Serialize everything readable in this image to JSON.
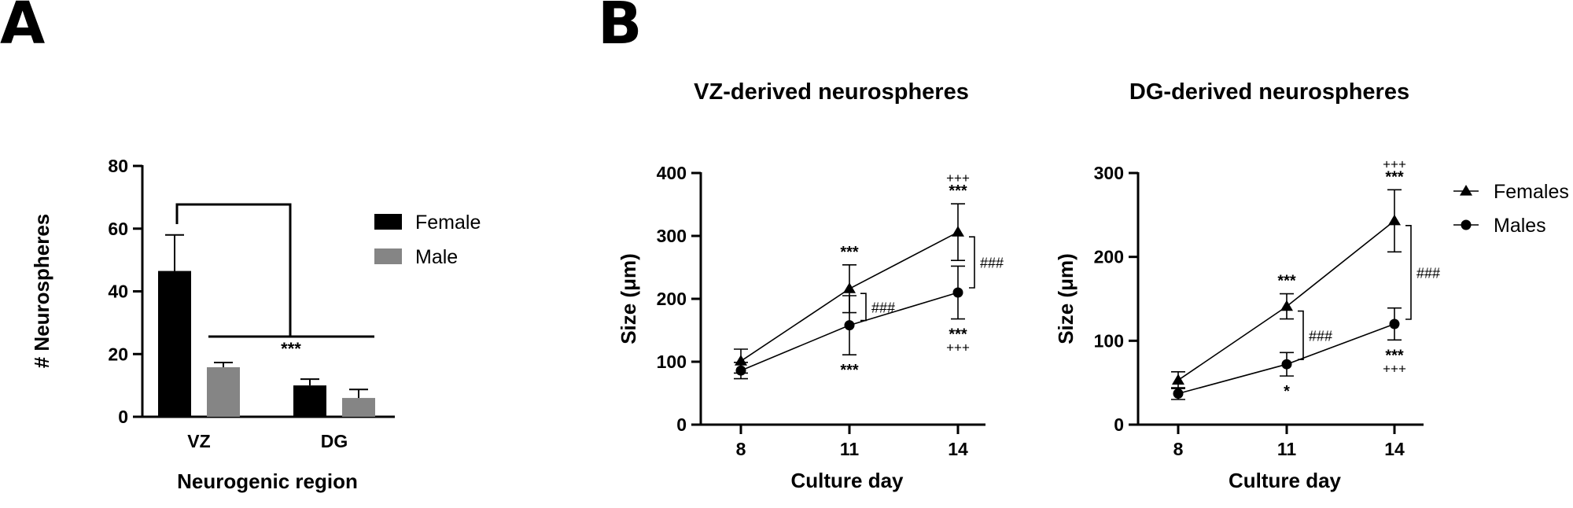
{
  "panels": {
    "a": "A",
    "b": "B"
  },
  "chart_data": [
    {
      "type": "bar",
      "panel": "A",
      "categories": [
        "VZ",
        "DG"
      ],
      "series": [
        {
          "name": "Female",
          "color": "#000000",
          "values": [
            46.5,
            10.0
          ],
          "errors": [
            11.5,
            2.0
          ]
        },
        {
          "name": "Male",
          "color": "#858585",
          "values": [
            15.8,
            6.0
          ],
          "errors": [
            1.5,
            2.7
          ]
        }
      ],
      "xlabel": "Neurogenic region",
      "ylabel": "# Neurospheres",
      "ylim": [
        0,
        80
      ],
      "yticks": [
        0,
        20,
        40,
        60,
        80
      ],
      "annotations": [
        {
          "text": "***",
          "compares": "VZ vs DG"
        }
      ],
      "legend_position": "right"
    },
    {
      "type": "line",
      "panel": "B",
      "title": "VZ-derived neurospheres",
      "xlabel": "Culture day",
      "ylabel": "Size (μm)",
      "x": [
        8,
        11,
        14
      ],
      "ylim": [
        0,
        400
      ],
      "yticks": [
        0,
        100,
        200,
        300,
        400
      ],
      "series": [
        {
          "name": "Females",
          "marker": "triangle",
          "values": [
            101,
            216,
            306
          ],
          "errors": [
            19,
            38,
            45
          ],
          "labels": [
            "",
            "***",
            "***"
          ],
          "labels2": [
            "",
            "",
            "+++"
          ]
        },
        {
          "name": "Males",
          "marker": "circle",
          "values": [
            86,
            158,
            210
          ],
          "errors": [
            13,
            47,
            42
          ],
          "labels": [
            "",
            "***",
            "***"
          ],
          "labels2": [
            "",
            "",
            "+++"
          ]
        }
      ],
      "between": [
        {
          "x": 11,
          "text": "###"
        },
        {
          "x": 14,
          "text": "###"
        }
      ]
    },
    {
      "type": "line",
      "panel": "B",
      "title": "DG-derived neurospheres",
      "xlabel": "Culture day",
      "ylabel": "Size (μm)",
      "x": [
        8,
        11,
        14
      ],
      "ylim": [
        0,
        300
      ],
      "yticks": [
        0,
        100,
        200,
        300
      ],
      "series": [
        {
          "name": "Females",
          "marker": "triangle",
          "values": [
            53,
            141,
            243
          ],
          "errors": [
            10,
            15,
            37
          ],
          "labels": [
            "",
            "***",
            "***"
          ],
          "labels2": [
            "",
            "",
            "+++"
          ]
        },
        {
          "name": "Males",
          "marker": "circle",
          "values": [
            37,
            72,
            120
          ],
          "errors": [
            7,
            14,
            19
          ],
          "labels": [
            "",
            "*",
            "***"
          ],
          "labels2": [
            "",
            "",
            "+++"
          ]
        }
      ],
      "between": [
        {
          "x": 11,
          "text": "###"
        },
        {
          "x": 14,
          "text": "###"
        }
      ],
      "legend": [
        "Females",
        "Males"
      ],
      "legend_position": "right"
    }
  ]
}
